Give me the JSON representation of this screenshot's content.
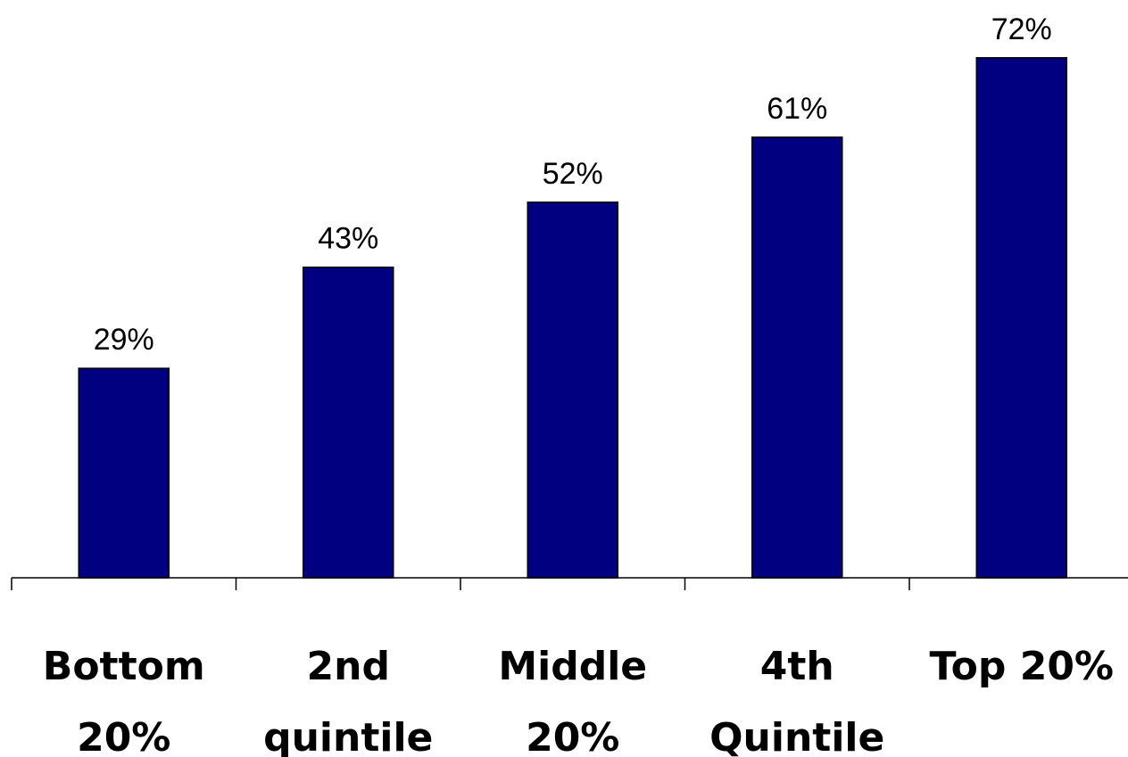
{
  "chart_data": {
    "type": "bar",
    "categories": [
      [
        "Bottom",
        "20%"
      ],
      [
        "2nd",
        "quintile"
      ],
      [
        "Middle",
        "20%"
      ],
      [
        "4th",
        "Quintile"
      ],
      [
        "Top 20%"
      ]
    ],
    "values": [
      29,
      43,
      52,
      61,
      72
    ],
    "data_labels": [
      "29%",
      "43%",
      "52%",
      "61%",
      "72%"
    ],
    "value_unit": "%",
    "title": "",
    "xlabel": "",
    "ylabel": "",
    "ylim": [
      0,
      80
    ],
    "grid": false,
    "legend": "none",
    "bar_color": "#000080",
    "bar_edge_color": "#000000"
  }
}
